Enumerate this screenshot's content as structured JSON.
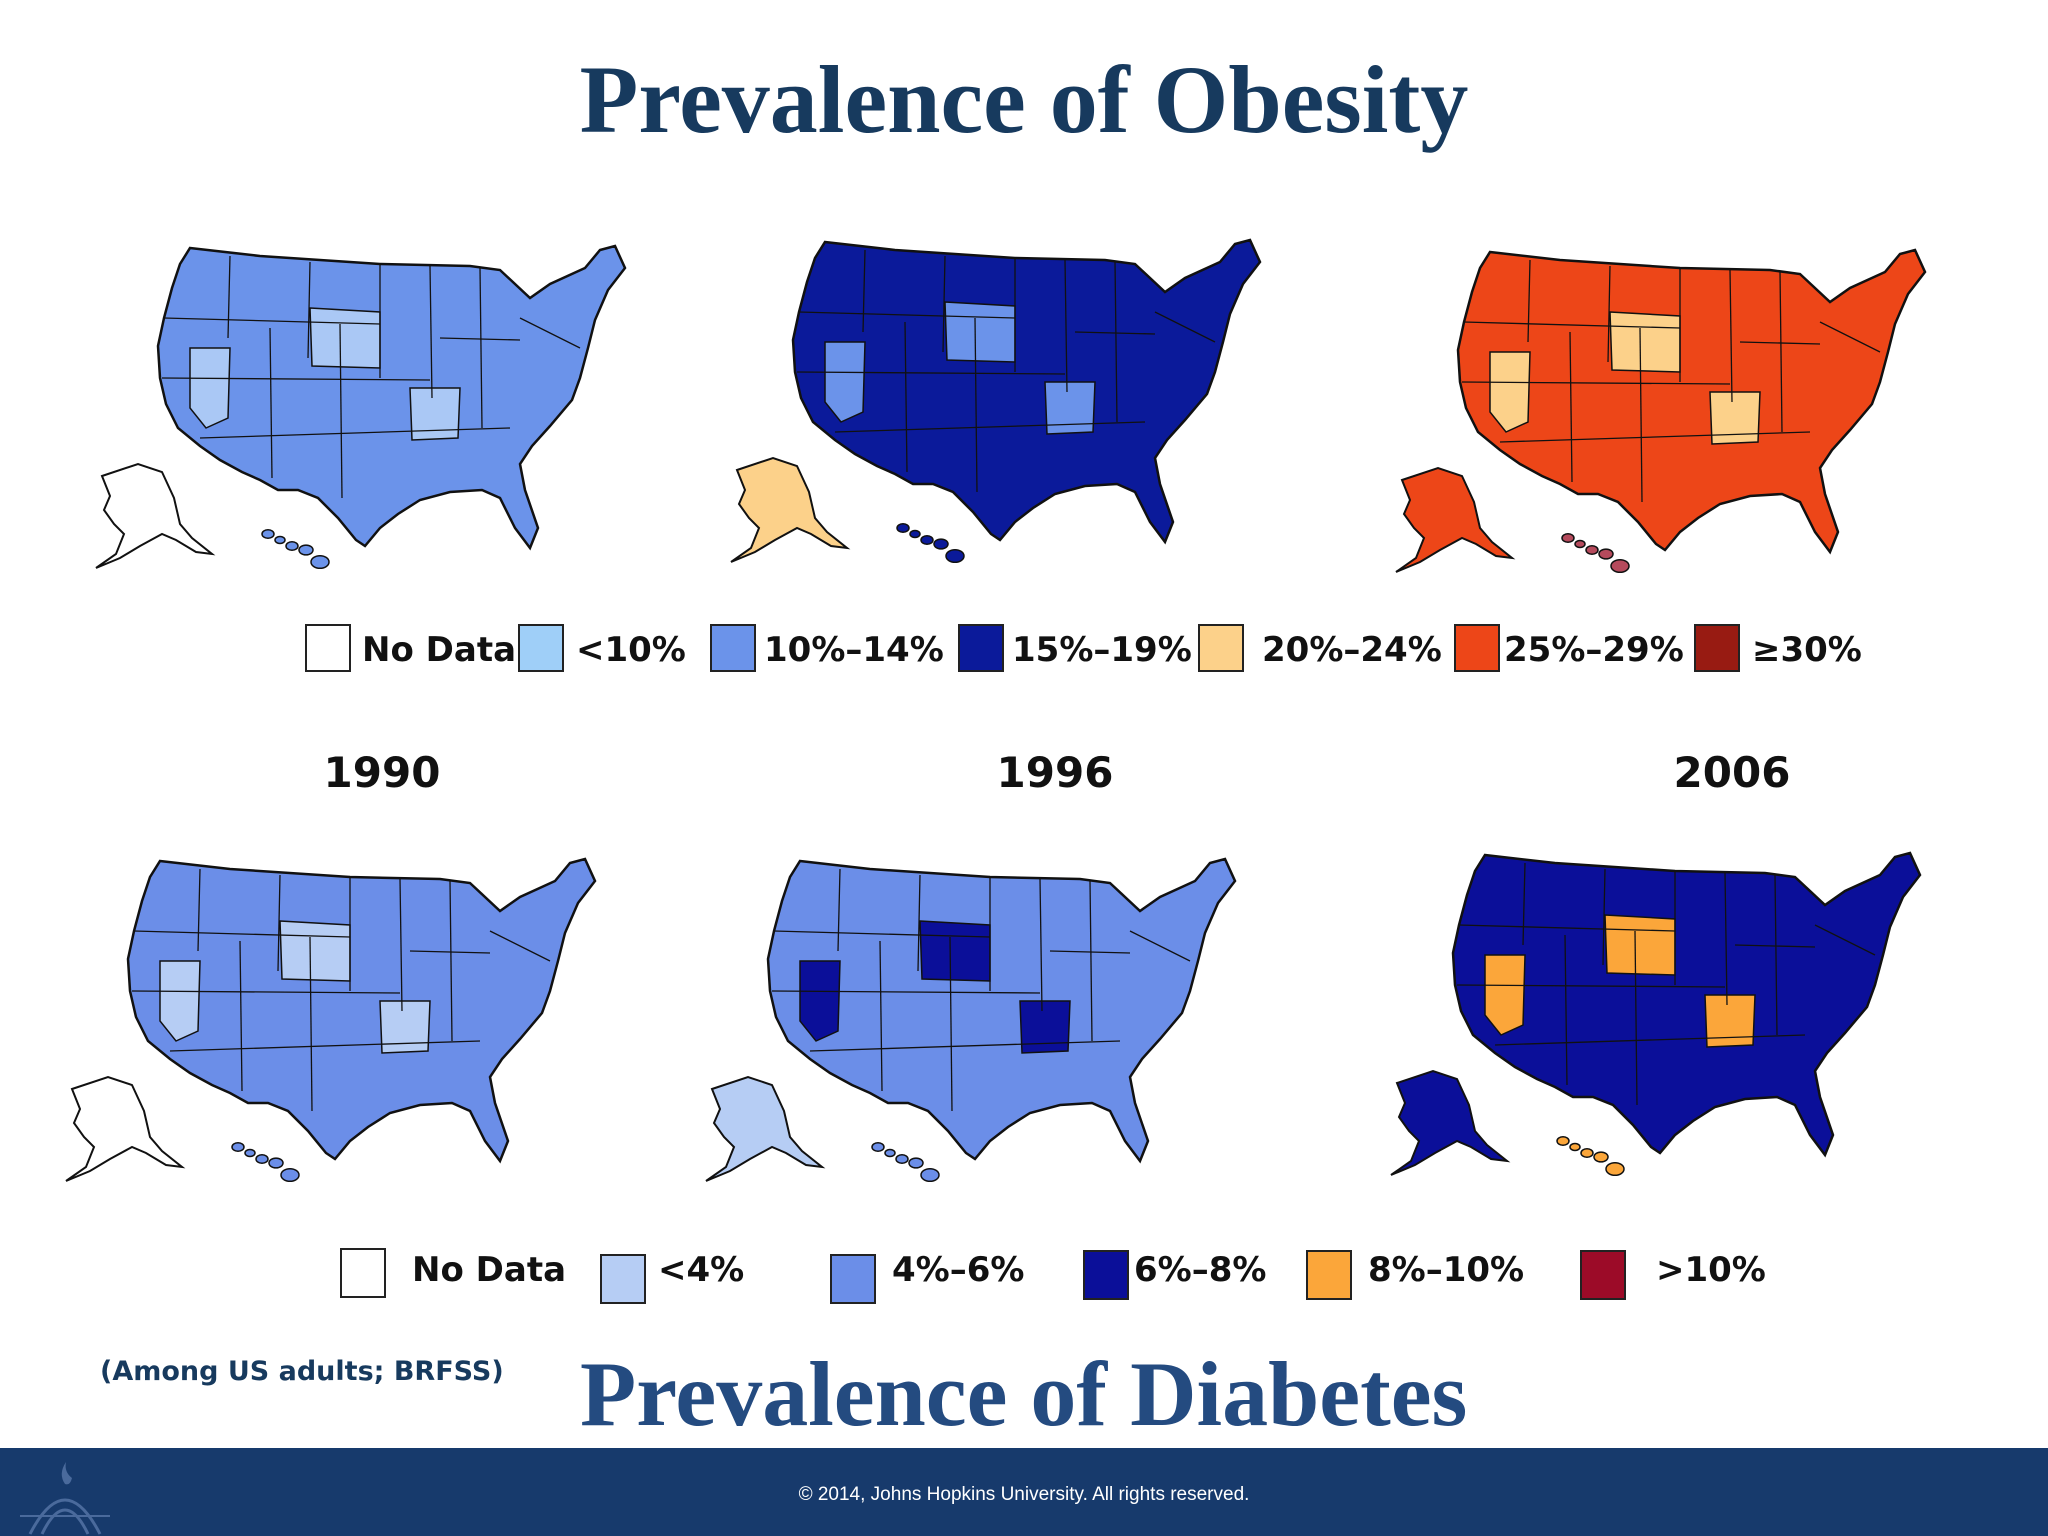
{
  "obesity": {
    "title": "Prevalence of Obesity",
    "legend": [
      {
        "label": "No Data",
        "color": "#ffffff"
      },
      {
        "label": "<10%",
        "color": "#9fcff8"
      },
      {
        "label": "10%–14%",
        "color": "#6b93ea"
      },
      {
        "label": "15%–19%",
        "color": "#0b1a9a"
      },
      {
        "label": "20%–24%",
        "color": "#fcd18a"
      },
      {
        "label": "25%–29%",
        "color": "#ed4618"
      },
      {
        "label": "≥30%",
        "color": "#981b12"
      }
    ],
    "maps": [
      {
        "year": "1990",
        "main_color": "#6b93ea",
        "accent_color": "#aac8f5",
        "alaska_color": "#ffffff",
        "hawaii_color": "#6b93ea"
      },
      {
        "year": "1996",
        "main_color": "#0b1a9a",
        "accent_color": "#6b93ea",
        "alaska_color": "#fcd18a",
        "hawaii_color": "#0b1a9a"
      },
      {
        "year": "2006",
        "main_color": "#ed4618",
        "accent_color": "#fcd18a",
        "alaska_color": "#ed4618",
        "hawaii_color": "#b54a5c"
      }
    ]
  },
  "years": [
    "1990",
    "1996",
    "2006"
  ],
  "diabetes": {
    "title": "Prevalence of Diabetes",
    "legend": [
      {
        "label": "No Data",
        "color": "#ffffff"
      },
      {
        "label": "<4%",
        "color": "#b6cdf4"
      },
      {
        "label": "4%–6%",
        "color": "#6b8ee8"
      },
      {
        "label": "6%–8%",
        "color": "#0b0f99"
      },
      {
        "label": "8%–10%",
        "color": "#fba63a"
      },
      {
        "label": ">10%",
        "color": "#9c0b28"
      }
    ],
    "maps": [
      {
        "year": "1990",
        "main_color": "#6b8ee8",
        "accent_color": "#b6cdf4",
        "alaska_color": "#ffffff",
        "hawaii_color": "#6b8ee8"
      },
      {
        "year": "1996",
        "main_color": "#6b8ee8",
        "accent_color": "#0b0f99",
        "alaska_color": "#b6cdf4",
        "hawaii_color": "#6b8ee8"
      },
      {
        "year": "2006",
        "main_color": "#0b0f99",
        "accent_color": "#fba63a",
        "alaska_color": "#0b0f99",
        "hawaii_color": "#fba63a"
      }
    ]
  },
  "note": "(Among US adults; BRFSS)",
  "footer": {
    "copyright": "© 2014, Johns Hopkins University. All rights reserved.",
    "logo_icon": "university-shield-icon"
  }
}
